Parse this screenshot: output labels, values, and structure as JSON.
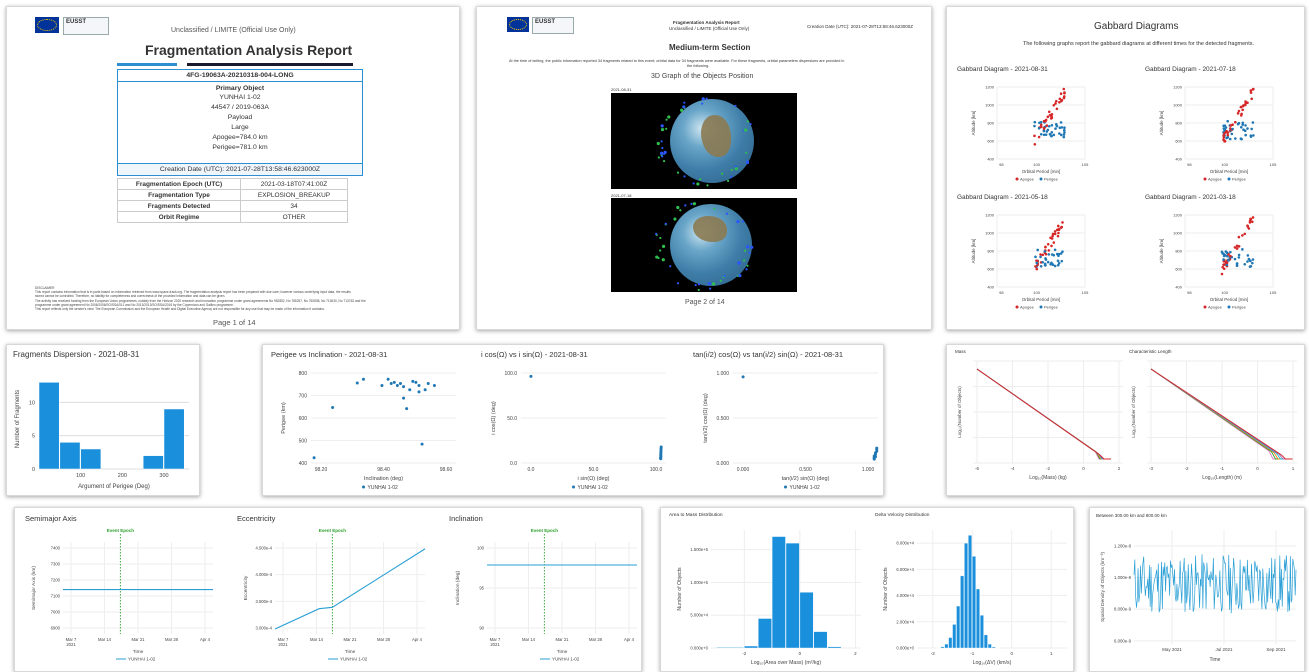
{
  "page1": {
    "classification": "Unclassified / LIMITE (Official Use Only)",
    "title": "Fragmentation Analysis Report",
    "report_id": "4FG-19063A-20210318-004-LONG",
    "primary_object_label": "Primary Object",
    "object_name": "YUNHAI 1-02",
    "object_ids": "44547 / 2019-063A",
    "object_type": "Payload",
    "object_size": "Large",
    "apogee": "Apogee=784.0 km",
    "perigee": "Perigee=781.0 km",
    "creation_date": "Creation Date (UTC): 2021-07-28T13:58:46.623000Z",
    "rows": [
      {
        "k": "Fragmentation Epoch (UTC)",
        "v": "2021-03-18T07:41:00Z"
      },
      {
        "k": "Fragmentation Type",
        "v": "EXPLOSION_BREAKUP"
      },
      {
        "k": "Fragments Detected",
        "v": "34"
      },
      {
        "k": "Orbit Regime",
        "v": "OTHER"
      }
    ],
    "disclaimer_title": "DISCLAIMER",
    "disclaimer_lines": [
      "This report contains information that is in parts based on information retrieved from www.space-track.org. The fragmentation analysis report has been prepared with due care; however various underlying input data, the results",
      "stored cannot be controlled. Therefore, no liability for completeness and correctness of the provided information and data can be given.",
      "The activity has received funding from the European Union programmes, notably from the Horizon 2020 research and innovation programme under grant agreements No 952852, No 785257, No 760838, No 713630, No 713762 and the",
      "programme under grant agreement No 2006/2006/SO/SSA/011 and No 2013/2013/SO/SSA/2016 by the Copernicus and Galileo programme.",
      "This report reflects only the sender's view. The European Commission and the European Health and Digital Executive Agency are not responsible for any use that may be made of the information it contains."
    ],
    "page": "Page 1 of 14"
  },
  "page2": {
    "header_title": "Fragmentation Analysis Report",
    "header_sub": "Unclassified / LIMITE (Official Use Only)",
    "header_date": "Creation Date (UTC): 2021-07-28T13:58:46.623000Z",
    "section": "Medium-term Section",
    "intro_1": "At the time of writing, the public information reported 34 fragments related to this event; orbital data for 34 fragments were available. For these fragments, orbital parameters dispersions are provided in",
    "intro_2": "the following.",
    "graph_title": "3D Graph of the Objects Position",
    "date_top": "2021-08-31",
    "date_bottom": "2021-07-18",
    "page": "Page 2 of 14"
  },
  "page3": {
    "title": "Gabbard Diagrams",
    "subtitle": "The following graphs report the gabbard diagrams at different times for the detected fragments.",
    "charts": [
      {
        "title": "Gabbard Diagram - 2021-08-31"
      },
      {
        "title": "Gabbard Diagram - 2021-07-18"
      },
      {
        "title": "Gabbard Diagram - 2021-05-18"
      },
      {
        "title": "Gabbard Diagram - 2021-03-18"
      }
    ],
    "xlabel": "Orbital Period [min]",
    "ylabel": "Altitude [km]",
    "legend_apogee": "Apogee",
    "legend_perigee": "Perigee",
    "xticks": [
      "98",
      "100",
      "105"
    ],
    "yticks": [
      "1200",
      "1000",
      "800",
      "600",
      "400"
    ]
  },
  "chart_data": [
    {
      "type": "bar",
      "title": "Fragments Dispersion - 2021-08-31",
      "xlabel": "Argument of Perigee (Deg)",
      "ylabel": "Number of Fragments",
      "x_ticks": [
        "100",
        "200",
        "300"
      ],
      "y_ticks": [
        "10",
        "5",
        "0"
      ],
      "bins": [
        [
          0,
          50
        ],
        [
          50,
          100
        ],
        [
          100,
          150
        ],
        [
          250,
          300
        ],
        [
          300,
          350
        ]
      ],
      "values": [
        13,
        4,
        3,
        2,
        9
      ],
      "ylim": [
        0,
        15
      ],
      "xlim": [
        0,
        360
      ]
    },
    {
      "type": "scatter",
      "title": "Perigee vs Inclination - 2021-08-31",
      "xlabel": "Inclination (deg)",
      "ylabel": "Perigee (km)",
      "x_ticks": [
        "98.20",
        "98.40",
        "98.60"
      ],
      "y_ticks": [
        "800",
        "700",
        "600",
        "500",
        "400"
      ],
      "series_name": "YUNHAI 1-02",
      "xlim": [
        98.15,
        98.62
      ],
      "ylim": [
        390,
        820
      ],
      "points": [
        [
          98.16,
          415
        ],
        [
          98.22,
          655
        ],
        [
          98.3,
          772
        ],
        [
          98.32,
          790
        ],
        [
          98.38,
          760
        ],
        [
          98.4,
          790
        ],
        [
          98.41,
          770
        ],
        [
          98.42,
          775
        ],
        [
          98.43,
          760
        ],
        [
          98.44,
          770
        ],
        [
          98.45,
          700
        ],
        [
          98.45,
          755
        ],
        [
          98.46,
          650
        ],
        [
          98.47,
          740
        ],
        [
          98.48,
          780
        ],
        [
          98.49,
          775
        ],
        [
          98.5,
          730
        ],
        [
          98.5,
          760
        ],
        [
          98.51,
          480
        ],
        [
          98.52,
          740
        ],
        [
          98.53,
          770
        ],
        [
          98.55,
          760
        ]
      ]
    },
    {
      "type": "scatter",
      "title": "i cos(Ω) vs i sin(Ω) - 2021-08-31",
      "xlabel": "i sin(Ω) (deg)",
      "ylabel": "i cos(Ω) (deg)",
      "x_ticks": [
        "0.0",
        "50.0",
        "100.0"
      ],
      "y_ticks": [
        "100.0",
        "50.0",
        "0.0"
      ],
      "series_name": "YUNHAI 1-02",
      "xlim": [
        0,
        102
      ],
      "ylim": [
        -5,
        102
      ],
      "points": [
        [
          7,
          98
        ],
        [
          98.3,
          0
        ],
        [
          98.3,
          2
        ],
        [
          98.3,
          4
        ],
        [
          98.4,
          6
        ],
        [
          98.4,
          8
        ],
        [
          98.5,
          10
        ],
        [
          98.5,
          12
        ],
        [
          98.6,
          14
        ],
        [
          98.2,
          1
        ],
        [
          98.4,
          3
        ]
      ]
    },
    {
      "type": "scatter",
      "title": "tan(i/2) cos(Ω) vs tan(i/2) sin(Ω) - 2021-08-31",
      "xlabel": "tan(i/2) sin(Ω) (deg)",
      "ylabel": "tan(i/2) cos(Ω) (deg)",
      "x_ticks": [
        "0.000",
        "0.500",
        "1.000"
      ],
      "y_ticks": [
        "1.000",
        "0.500",
        "0.000"
      ],
      "series_name": "YUNHAI 1-02",
      "xlim": [
        0,
        1.15
      ],
      "ylim": [
        -0.05,
        1.1
      ],
      "points": [
        [
          0.08,
          1.05
        ],
        [
          1.12,
          0
        ],
        [
          1.12,
          0.02
        ],
        [
          1.12,
          0.04
        ],
        [
          1.13,
          0.06
        ],
        [
          1.13,
          0.08
        ],
        [
          1.14,
          0.1
        ],
        [
          1.14,
          0.12
        ],
        [
          1.14,
          0.14
        ],
        [
          1.12,
          0.01
        ],
        [
          1.13,
          0.03
        ]
      ]
    },
    {
      "type": "line",
      "title": "Semimajor Axis",
      "xlabel": "Time",
      "ylabel": "Semimajor Axis (km)",
      "event_label": "Event Epoch",
      "series_name": "YUNHAI 1-02",
      "x_ticks": [
        "Mar 7\n2021",
        "Mar 14",
        "Mar 21",
        "Mar 28",
        "Apr 4"
      ],
      "y_ticks": [
        "7400",
        "7300",
        "7200",
        "7100",
        "7000",
        "6900"
      ],
      "x": [
        "Mar 5",
        "Apr 8"
      ],
      "values": [
        7160,
        7160
      ],
      "ylim": [
        6880,
        7460
      ]
    },
    {
      "type": "line",
      "title": "Eccentricity",
      "xlabel": "Time",
      "ylabel": "Eccentricity",
      "event_label": "Event Epoch",
      "series_name": "YUNHAI 1-02",
      "x_ticks": [
        "Mar 7\n2021",
        "Mar 14",
        "Mar 21",
        "Mar 28",
        "Apr 4"
      ],
      "y_ticks": [
        "4.500e-4",
        "4.000e-4",
        "3.500e-4",
        "3.000e-4"
      ],
      "x": [
        "Mar 5",
        "Mar 15",
        "Mar 18",
        "Apr 8"
      ],
      "values": [
        0.000281,
        0.000325,
        0.000328,
        0.000455
      ],
      "ylim": [
        0.00027,
        0.00047
      ]
    },
    {
      "type": "line",
      "title": "Inclination",
      "xlabel": "Time",
      "ylabel": "Inclination (deg)",
      "event_label": "Event Epoch",
      "series_name": "YUNHAI 1-02",
      "x_ticks": [
        "Mar 7\n2021",
        "Mar 14",
        "Mar 21",
        "Mar 28",
        "Apr 4"
      ],
      "y_ticks": [
        "100",
        "95",
        "90"
      ],
      "x": [
        "Mar 5",
        "Apr 8"
      ],
      "values": [
        98.5,
        98.5
      ],
      "ylim": [
        88,
        102
      ]
    },
    {
      "type": "line",
      "title": "Mass",
      "xlabel": "Log₁₀(Mass) (kg)",
      "ylabel": "Log₁₀(Number of Objects)",
      "x_ticks": [
        "-6",
        "-4",
        "-2",
        "0",
        "2"
      ]
    },
    {
      "type": "line",
      "title": "Characteristic Length",
      "xlabel": "Log₁₀(Length) (m)",
      "ylabel": "Log₁₀(Number of Objects)",
      "x_ticks": [
        "-3",
        "-2",
        "-1",
        "0",
        "1"
      ]
    },
    {
      "type": "bar",
      "title": "Area to Mass Distribution",
      "xlabel": "Log₁₀(Area over Mass) (m²/kg)",
      "ylabel": "Number of Objects",
      "x_ticks": [
        "-2",
        "0",
        "2"
      ],
      "y_ticks": [
        "1.500e+5",
        "1.000e+5",
        "5.000e+4",
        "0.000e+0"
      ],
      "bins": [
        [
          -3,
          -2
        ],
        [
          -2,
          -1.5
        ],
        [
          -1.5,
          -1
        ],
        [
          -1,
          -0.5
        ],
        [
          -0.5,
          0
        ],
        [
          0,
          0.5
        ],
        [
          0.5,
          1
        ],
        [
          1,
          1.5
        ]
      ],
      "values": [
        1000,
        3000,
        45000,
        170000,
        160000,
        85000,
        25000,
        2000
      ],
      "ylim": [
        0,
        180000
      ]
    },
    {
      "type": "bar",
      "title": "Delta Velocity Distribution",
      "xlabel": "Log₁₀(ΔV) (km/s)",
      "ylabel": "Number of Objects",
      "x_ticks": [
        "-2",
        "-1",
        "0",
        "1"
      ],
      "y_ticks": [
        "8.000e+4",
        "6.000e+4",
        "4.000e+4",
        "2.000e+4",
        "0.000e+0"
      ],
      "bins": [
        [
          -1.9,
          -1.8
        ],
        [
          -1.8,
          -1.7
        ],
        [
          -1.7,
          -1.6
        ],
        [
          -1.6,
          -1.5
        ],
        [
          -1.5,
          -1.4
        ],
        [
          -1.4,
          -1.3
        ],
        [
          -1.3,
          -1.2
        ],
        [
          -1.2,
          -1.1
        ],
        [
          -1.1,
          -1.0
        ],
        [
          -1.0,
          -0.9
        ],
        [
          -0.9,
          -0.8
        ],
        [
          -0.8,
          -0.7
        ],
        [
          -0.7,
          -0.6
        ],
        [
          -0.6,
          -0.5
        ],
        [
          -0.5,
          -0.4
        ],
        [
          -0.4,
          -0.3
        ]
      ],
      "values": [
        300,
        1000,
        3000,
        8000,
        18000,
        32000,
        55000,
        80000,
        86000,
        70000,
        45000,
        25000,
        10000,
        3000,
        800,
        200
      ],
      "ylim": [
        0,
        90000
      ]
    },
    {
      "type": "line",
      "title": "Between 300.00 km and 800.00 km",
      "xlabel": "Time",
      "ylabel": "Spatial Density of Objects (km⁻³)",
      "x_ticks": [
        "May 2021",
        "Jul 2021",
        "Sep 2021"
      ],
      "y_ticks": [
        "1.200e-8",
        "1.000e-8",
        "8.000e-9",
        "6.000e-9"
      ],
      "ylim": [
        5.8e-09,
        1.3e-08
      ]
    }
  ]
}
